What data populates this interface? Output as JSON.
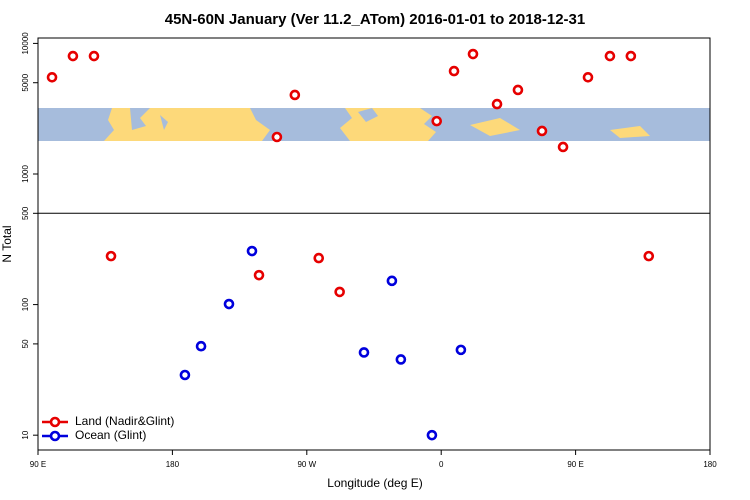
{
  "chart_data": {
    "type": "scatter",
    "title": "45N-60N January (Ver 11.2_ATom)   2016-01-01 to 2018-12-31",
    "x_label": "Longitude (deg E)",
    "y_label": "N Total",
    "xlim": [
      90,
      540
    ],
    "ylim": [
      7.7,
      11000
    ],
    "log_y": true,
    "xticks": [
      {
        "value": 90,
        "label": "90 E"
      },
      180,
      {
        "value": 270,
        "label": "90 W"
      },
      {
        "value": 360,
        "label": "0"
      },
      {
        "value": 450,
        "label": "90 E"
      },
      {
        "value": 540,
        "label": "180"
      }
    ],
    "yticks": [
      10,
      50,
      100,
      500,
      1000,
      5000,
      10000
    ],
    "legend": "bottom-left",
    "series": [
      {
        "name": "Land (Nadir&Glint)",
        "color": "#e60000",
        "x": [
          99.4,
          113.4,
          127.5,
          138.9,
          238,
          250,
          262,
          278,
          292,
          357,
          368.6,
          381.3,
          397.4,
          411.4,
          427.5,
          441.6,
          458.3,
          473,
          487,
          499
        ],
        "values": [
          5500,
          8000,
          8000,
          235,
          168,
          1920,
          4030,
          227,
          125,
          2540,
          6140,
          8290,
          3430,
          4400,
          2135,
          1610,
          5500,
          8000,
          8000,
          235
        ]
      },
      {
        "name": "Ocean (Glint)",
        "color": "#0000dd",
        "x": [
          233.3,
          217.9,
          199.2,
          188.4,
          308.3,
          327,
          333,
          353.8,
          373.2
        ],
        "values": [
          257,
          101,
          48,
          28.9,
          43,
          152,
          38,
          10,
          45
        ]
      }
    ]
  }
}
